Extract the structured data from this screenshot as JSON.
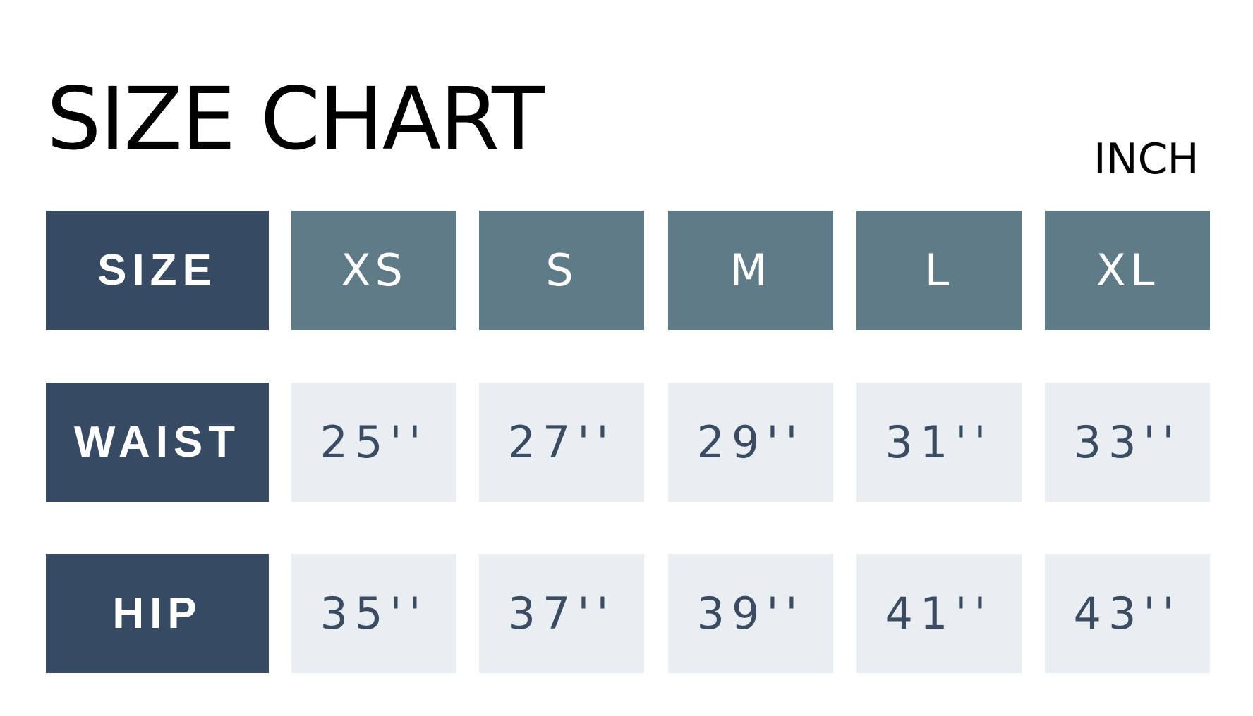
{
  "title": "SIZE CHART",
  "unit": "INCH",
  "colors": {
    "label_bg": "#374a63",
    "header_bg": "#607b88",
    "value_bg": "#e9eef3",
    "value_text": "#3b4b62"
  },
  "header": {
    "label": "SIZE",
    "sizes": [
      "XS",
      "S",
      "M",
      "L",
      "XL"
    ]
  },
  "rows": [
    {
      "label": "WAIST",
      "values": [
        "25''",
        "27''",
        "29''",
        "31''",
        "33''"
      ]
    },
    {
      "label": "HIP",
      "values": [
        "35''",
        "37''",
        "39''",
        "41''",
        "43''"
      ]
    }
  ]
}
